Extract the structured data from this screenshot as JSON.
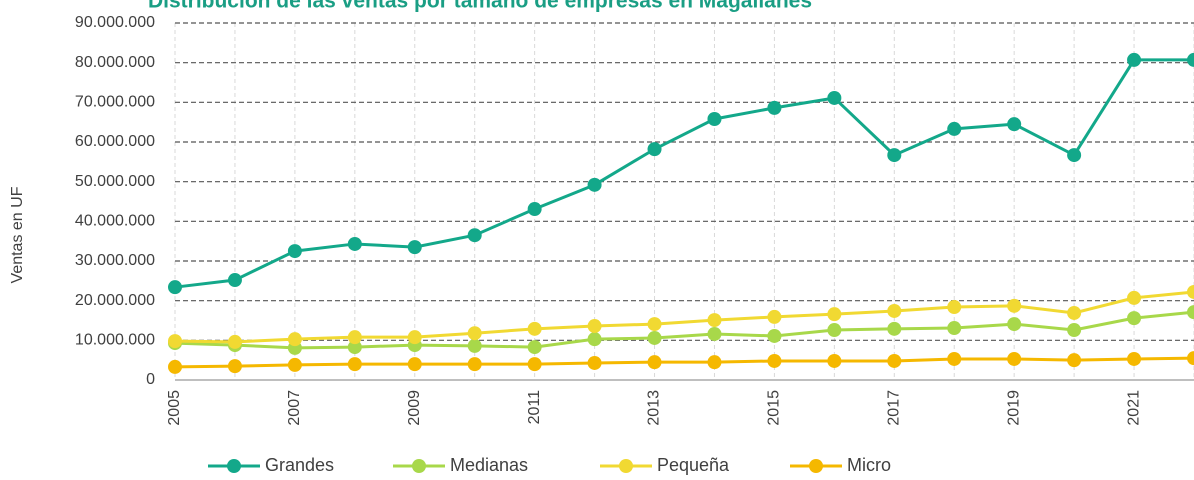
{
  "chart_data": {
    "type": "line",
    "title": "Distribución de las ventas por tamaño de empresas en Magallanes",
    "y_label": "Ventas en UF",
    "categories": [
      "2005",
      null,
      "2007",
      null,
      "2009",
      null,
      "2011",
      null,
      "2013",
      null,
      "2015",
      null,
      "2017",
      null,
      "2019",
      null,
      "2021",
      null
    ],
    "series": [
      {
        "name": "Grandes",
        "color": "#13a88a",
        "values": [
          23400000,
          25200000,
          32500000,
          34300000,
          33500000,
          36500000,
          43100000,
          49200000,
          58200000,
          65800000,
          68600000,
          71100000,
          56700000,
          63300000,
          64500000,
          56700000,
          80700000,
          80700000
        ]
      },
      {
        "name": "Medianas",
        "color": "#a8d84a",
        "values": [
          9300000,
          8800000,
          8100000,
          8300000,
          8800000,
          8600000,
          8300000,
          10300000,
          10600000,
          11600000,
          11100000,
          12600000,
          12900000,
          13100000,
          14100000,
          12600000,
          15600000,
          17100000
        ]
      },
      {
        "name": "Pequeña",
        "color": "#f1d932",
        "values": [
          9800000,
          9600000,
          10300000,
          10800000,
          10800000,
          11800000,
          12900000,
          13600000,
          14100000,
          15100000,
          15900000,
          16600000,
          17400000,
          18400000,
          18700000,
          16900000,
          20700000,
          22200000
        ]
      },
      {
        "name": "Micro",
        "color": "#f5b800",
        "values": [
          3300000,
          3500000,
          3800000,
          4000000,
          4000000,
          4000000,
          4000000,
          4300000,
          4500000,
          4500000,
          4800000,
          4800000,
          4800000,
          5300000,
          5300000,
          5000000,
          5300000,
          5500000
        ]
      }
    ],
    "ylim": [
      0,
      90000000
    ],
    "yticks": [
      0,
      {
        "value": 10000000,
        "label": "10.000.000"
      },
      {
        "value": 20000000,
        "label": "20.000.000"
      },
      {
        "value": 30000000,
        "label": "30.000.000"
      },
      {
        "value": 40000000,
        "label": "40.000.000"
      },
      {
        "value": 50000000,
        "label": "50.000.000"
      },
      {
        "value": 60000000,
        "label": "60.000.000"
      },
      {
        "value": 70000000,
        "label": "70.000.000"
      },
      {
        "value": 80000000,
        "label": "80.000.000"
      },
      {
        "value": 90000000,
        "label": "90.000.000"
      }
    ],
    "grid": true,
    "legend": "bottom"
  }
}
